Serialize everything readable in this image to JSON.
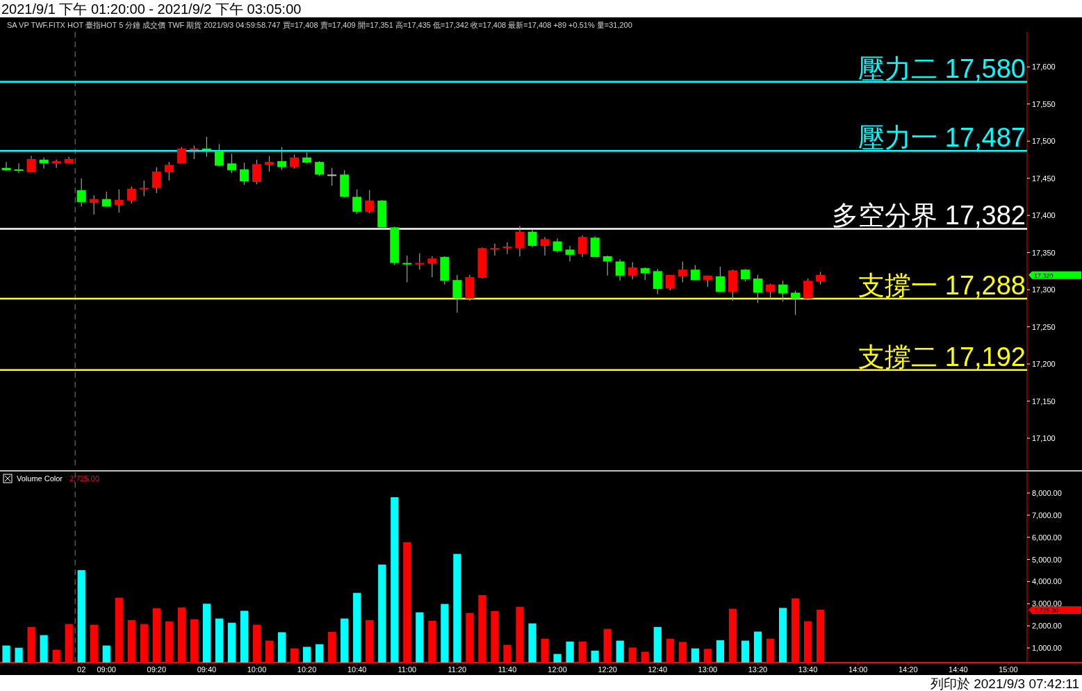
{
  "chart_data": [
    {
      "type": "candlestick",
      "title": "2021/9/1 下午 01:20:00 - 2021/9/2 下午 03:05:00",
      "subtitle": "SA  VP  TWF.FITX HOT  臺指HOT 5 分鐘  成交價  TWF  期貨  2021/9/3 04:59:58.747 買=17,408 賣=17,409 開=17,351 高=17,435 低=17,342 收=17,408 最新=17,408 +89 +0.51% 量=31,200",
      "categories": [
        null,
        null,
        null,
        null,
        null,
        null,
        null,
        null,
        null,
        null,
        null,
        null,
        null,
        null,
        null,
        null,
        null,
        null,
        null,
        null,
        null,
        null,
        null,
        null,
        null,
        null,
        null,
        null,
        null,
        null,
        null,
        null,
        null,
        null,
        null,
        null,
        null,
        null,
        null,
        null,
        null,
        null,
        null,
        null,
        null,
        null,
        null,
        null,
        null,
        null,
        null,
        null,
        null,
        null,
        null,
        null,
        null,
        null,
        null,
        null,
        null,
        null,
        null,
        null,
        null,
        null,
        null,
        null,
        null,
        null,
        null,
        null,
        null,
        null,
        null,
        null,
        null,
        null,
        null,
        null,
        null,
        null
      ],
      "ohlc": [
        [
          17464,
          17472,
          17460,
          17461
        ],
        [
          17462,
          17470,
          17457,
          17460
        ],
        [
          17458,
          17480,
          17458,
          17476
        ],
        [
          17475,
          17478,
          17463,
          17470
        ],
        [
          17470,
          17475,
          17464,
          17473
        ],
        [
          17470,
          17479,
          17470,
          17476
        ],
        [
          17434,
          17450,
          17412,
          17418
        ],
        [
          17417,
          17427,
          17401,
          17422
        ],
        [
          17422,
          17432,
          17412,
          17412
        ],
        [
          17414,
          17435,
          17404,
          17421
        ],
        [
          17420,
          17439,
          17416,
          17436
        ],
        [
          17436,
          17447,
          17426,
          17437
        ],
        [
          17437,
          17465,
          17430,
          17459
        ],
        [
          17458,
          17472,
          17447,
          17468
        ],
        [
          17470,
          17492,
          17470,
          17490
        ],
        [
          17488,
          17494,
          17476,
          17490
        ],
        [
          17490,
          17506,
          17479,
          17488
        ],
        [
          17487,
          17496,
          17466,
          17467
        ],
        [
          17470,
          17483,
          17457,
          17461
        ],
        [
          17462,
          17471,
          17441,
          17446
        ],
        [
          17445,
          17475,
          17442,
          17469
        ],
        [
          17468,
          17480,
          17459,
          17472
        ],
        [
          17473,
          17492,
          17461,
          17465
        ],
        [
          17465,
          17482,
          17463,
          17478
        ],
        [
          17478,
          17485,
          17470,
          17471
        ],
        [
          17472,
          17473,
          17453,
          17455
        ],
        [
          17455,
          17464,
          17440,
          17455
        ],
        [
          17455,
          17461,
          17424,
          17425
        ],
        [
          17425,
          17435,
          17402,
          17405
        ],
        [
          17405,
          17434,
          17403,
          17420
        ],
        [
          17420,
          17421,
          17384,
          17384
        ],
        [
          17384,
          17385,
          17333,
          17336
        ],
        [
          17336,
          17346,
          17310,
          17334
        ],
        [
          17334,
          17349,
          17327,
          17336
        ],
        [
          17335,
          17345,
          17317,
          17342
        ],
        [
          17344,
          17345,
          17307,
          17312
        ],
        [
          17313,
          17320,
          17269,
          17289
        ],
        [
          17288,
          17320,
          17285,
          17317
        ],
        [
          17316,
          17357,
          17315,
          17356
        ],
        [
          17354,
          17362,
          17346,
          17356
        ],
        [
          17356,
          17364,
          17348,
          17358
        ],
        [
          17356,
          17386,
          17345,
          17378
        ],
        [
          17378,
          17381,
          17357,
          17359
        ],
        [
          17359,
          17371,
          17346,
          17368
        ],
        [
          17365,
          17369,
          17350,
          17352
        ],
        [
          17354,
          17359,
          17338,
          17347
        ],
        [
          17348,
          17373,
          17344,
          17371
        ],
        [
          17370,
          17372,
          17344,
          17344
        ],
        [
          17345,
          17346,
          17319,
          17338
        ],
        [
          17338,
          17341,
          17312,
          17319
        ],
        [
          17319,
          17337,
          17314,
          17330
        ],
        [
          17329,
          17330,
          17313,
          17322
        ],
        [
          17325,
          17328,
          17294,
          17301
        ],
        [
          17302,
          17320,
          17299,
          17320
        ],
        [
          17318,
          17338,
          17310,
          17327
        ],
        [
          17327,
          17333,
          17313,
          17313
        ],
        [
          17313,
          17319,
          17304,
          17319
        ],
        [
          17318,
          17331,
          17297,
          17297
        ],
        [
          17297,
          17327,
          17285,
          17326
        ],
        [
          17327,
          17328,
          17311,
          17314
        ],
        [
          17315,
          17320,
          17282,
          17296
        ],
        [
          17297,
          17308,
          17288,
          17307
        ],
        [
          17307,
          17312,
          17284,
          17295
        ],
        [
          17296,
          17299,
          17266,
          17288
        ],
        [
          17288,
          17315,
          17286,
          17312
        ],
        [
          17311,
          17324,
          17307,
          17320
        ],
        null,
        null,
        null,
        null,
        null,
        null,
        null,
        null,
        null,
        null,
        null,
        null,
        null,
        null,
        null,
        null
      ],
      "colors": [
        "#00ff00",
        "#00ff00",
        "#ff0000",
        "#00ff00",
        "#ff0000",
        "#ff0000",
        "#00ff00",
        "#ff0000",
        "#00ff00",
        "#ff0000",
        "#ff0000",
        "#ff0000",
        "#ff0000",
        "#ff0000",
        "#ff0000",
        "#ff0000",
        "#00ff00",
        "#00ff00",
        "#00ff00",
        "#00ff00",
        "#ff0000",
        "#ff0000",
        "#00ff00",
        "#ff0000",
        "#00ff00",
        "#00ff00",
        "#c0c0c0",
        "#00ff00",
        "#00ff00",
        "#ff0000",
        "#00ff00",
        "#00ff00",
        "#00ff00",
        "#ff0000",
        "#ff0000",
        "#00ff00",
        "#00ff00",
        "#ff0000",
        "#ff0000",
        "#ff0000",
        "#ff0000",
        "#ff0000",
        "#00ff00",
        "#ff0000",
        "#00ff00",
        "#00ff00",
        "#ff0000",
        "#00ff00",
        "#00ff00",
        "#00ff00",
        "#ff0000",
        "#00ff00",
        "#00ff00",
        "#ff0000",
        "#ff0000",
        "#00ff00",
        "#ff0000",
        "#00ff00",
        "#ff0000",
        "#00ff00",
        "#00ff00",
        "#ff0000",
        "#00ff00",
        "#00ff00",
        "#ff0000",
        "#ff0000",
        null,
        null,
        null,
        null,
        null,
        null,
        null,
        null,
        null,
        null,
        null,
        null,
        null,
        null,
        null,
        null
      ],
      "ylim": [
        17058,
        17647
      ],
      "yticks": [
        {
          "value": 17100,
          "label": "17,100"
        },
        {
          "value": 17150,
          "label": "17,150"
        },
        {
          "value": 17200,
          "label": "17,200"
        },
        {
          "value": 17250,
          "label": "17,250"
        },
        {
          "value": 17300,
          "label": "17,300"
        },
        {
          "value": 17350,
          "label": "17,350"
        },
        {
          "value": 17400,
          "label": "17,400"
        },
        {
          "value": 17450,
          "label": "17,450"
        },
        {
          "value": 17500,
          "label": "17,500"
        },
        {
          "value": 17550,
          "label": "17,550"
        },
        {
          "value": 17600,
          "label": "17,600"
        }
      ],
      "ref_lines": [
        {
          "axis": "y",
          "value": 17580,
          "label": "壓力二 17,580",
          "color": "#00ffff"
        },
        {
          "axis": "y",
          "value": 17487,
          "label": "壓力一 17,487",
          "color": "#00ffff"
        },
        {
          "axis": "y",
          "value": 17382,
          "label": "多空分界 17,382",
          "color": "#ffffff"
        },
        {
          "axis": "y",
          "value": 17288,
          "label": "支撐一 17,288",
          "color": "#ffff00"
        },
        {
          "axis": "y",
          "value": 17192,
          "label": "支撐二 17,192",
          "color": "#ffff00"
        }
      ],
      "annotations": [
        "17,320"
      ],
      "tick_labels": "y"
    },
    {
      "type": "bar",
      "title": "Volume Color",
      "categories": [
        null,
        null,
        null,
        null,
        null,
        null,
        "02",
        null,
        "09:00",
        null,
        null,
        null,
        "09:20",
        null,
        null,
        null,
        "09:40",
        null,
        null,
        null,
        "10:00",
        null,
        null,
        null,
        "10:20",
        null,
        null,
        null,
        "10:40",
        null,
        null,
        null,
        "11:00",
        null,
        null,
        null,
        "11:20",
        null,
        null,
        null,
        "11:40",
        null,
        null,
        null,
        "12:00",
        null,
        null,
        null,
        "12:20",
        null,
        null,
        null,
        "12:40",
        null,
        null,
        null,
        "13:00",
        null,
        null,
        null,
        "13:20",
        null,
        null,
        null,
        "13:40",
        null,
        null,
        null,
        "14:00",
        null,
        null,
        null,
        "14:20",
        null,
        null,
        null,
        "14:40",
        null,
        null,
        null,
        "15:00",
        null
      ],
      "values": [
        1110,
        1010,
        1950,
        1580,
        920,
        2080,
        4520,
        2050,
        1110,
        3270,
        2260,
        2080,
        2800,
        2200,
        2830,
        2300,
        3000,
        2330,
        2140,
        2680,
        2050,
        1330,
        1710,
        980,
        1050,
        1170,
        1730,
        2330,
        3490,
        2260,
        4770,
        7810,
        5780,
        2610,
        2230,
        2990,
        5250,
        2580,
        3390,
        2670,
        1140,
        2860,
        2110,
        1420,
        730,
        1290,
        1290,
        880,
        1860,
        1330,
        1020,
        830,
        1950,
        1420,
        1270,
        980,
        960,
        1350,
        2770,
        1330,
        1740,
        1420,
        2810,
        3240,
        2210,
        2725,
        null,
        null,
        null,
        null,
        null,
        null,
        null,
        null,
        null,
        null,
        null,
        null,
        null,
        null,
        null,
        null
      ],
      "colors": [
        "#00ffff",
        "#00ffff",
        "#ff0000",
        "#00ffff",
        "#ff0000",
        "#ff0000",
        "#00ffff",
        "#ff0000",
        "#00ffff",
        "#ff0000",
        "#ff0000",
        "#ff0000",
        "#ff0000",
        "#ff0000",
        "#ff0000",
        "#ff0000",
        "#00ffff",
        "#00ffff",
        "#00ffff",
        "#00ffff",
        "#ff0000",
        "#ff0000",
        "#00ffff",
        "#ff0000",
        "#00ffff",
        "#00ffff",
        "#ff0000",
        "#00ffff",
        "#00ffff",
        "#ff0000",
        "#00ffff",
        "#00ffff",
        "#ff0000",
        "#00ffff",
        "#ff0000",
        "#00ffff",
        "#00ffff",
        "#ff0000",
        "#ff0000",
        "#ff0000",
        "#ff0000",
        "#ff0000",
        "#00ffff",
        "#ff0000",
        "#00ffff",
        "#00ffff",
        "#ff0000",
        "#00ffff",
        "#ff0000",
        "#00ffff",
        "#ff0000",
        "#ff0000",
        "#00ffff",
        "#ff0000",
        "#ff0000",
        "#00ffff",
        "#ff0000",
        "#00ffff",
        "#ff0000",
        "#00ffff",
        "#00ffff",
        "#ff0000",
        "#00ffff",
        "#ff0000",
        "#ff0000",
        "#ff0000",
        null,
        null,
        null,
        null,
        null,
        null,
        null,
        null,
        null,
        null,
        null,
        null,
        null,
        null,
        null,
        null
      ],
      "ylim": [
        342,
        8940
      ],
      "yticks": [
        {
          "value": 1000,
          "label": "1,000.00"
        },
        {
          "value": 2000,
          "label": "2,000.00"
        },
        {
          "value": 3000,
          "label": "3,000.00"
        },
        {
          "value": 4000,
          "label": "4,000.00"
        },
        {
          "value": 5000,
          "label": "5,000.00"
        },
        {
          "value": 6000,
          "label": "6,000.00"
        },
        {
          "value": 7000,
          "label": "7,000.00"
        },
        {
          "value": 8000,
          "label": "8,000.00"
        }
      ],
      "annotations": [
        "2,725.00",
        "2,725.00",
        "列印於 2021/9/3 07:42:11"
      ]
    }
  ]
}
